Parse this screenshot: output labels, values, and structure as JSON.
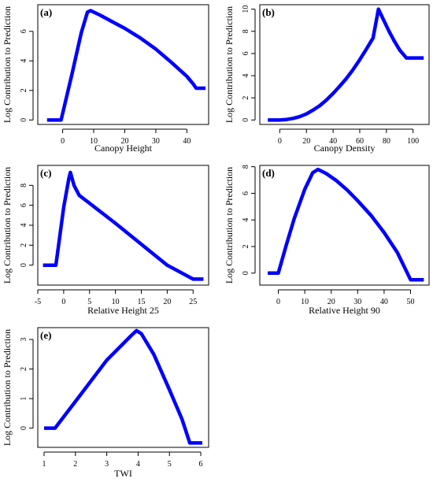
{
  "chart_data": [
    {
      "type": "line",
      "panel_label": "(a)",
      "xlabel": "Canopy Height",
      "ylabel": "Log Contribution to Prediction",
      "xlim": [
        -8,
        47
      ],
      "ylim": [
        -0.3,
        7.8
      ],
      "xticks": [
        0,
        10,
        20,
        30,
        40
      ],
      "yticks": [
        0,
        2,
        4,
        6
      ],
      "series": [
        {
          "color": "#0000ff",
          "x": [
            -5,
            -0.5,
            3,
            6,
            8,
            9,
            12,
            16,
            20,
            25,
            30,
            35,
            40,
            42,
            43,
            46
          ],
          "y": [
            0,
            0,
            3.1,
            5.9,
            7.3,
            7.4,
            7.1,
            6.65,
            6.2,
            5.55,
            4.8,
            3.9,
            2.95,
            2.45,
            2.15,
            2.15
          ]
        }
      ]
    },
    {
      "type": "line",
      "panel_label": "(b)",
      "xlabel": "Canopy Density",
      "ylabel": "Log Contribution to Prediction",
      "xlim": [
        -15,
        112
      ],
      "ylim": [
        -0.4,
        10.4
      ],
      "xticks": [
        0,
        20,
        40,
        60,
        80,
        100
      ],
      "yticks": [
        0,
        2,
        4,
        6,
        8,
        10
      ],
      "series": [
        {
          "color": "#0000ff",
          "x": [
            -9,
            0,
            5,
            10,
            15,
            20,
            25,
            30,
            35,
            40,
            45,
            50,
            55,
            60,
            65,
            70,
            74,
            78,
            82,
            86,
            90,
            95,
            100,
            108
          ],
          "y": [
            0,
            0,
            0.05,
            0.15,
            0.3,
            0.55,
            0.9,
            1.3,
            1.8,
            2.4,
            3.05,
            3.75,
            4.55,
            5.45,
            6.4,
            7.4,
            10,
            9,
            8,
            7.1,
            6.3,
            5.6,
            5.6,
            5.6
          ]
        }
      ]
    },
    {
      "type": "line",
      "panel_label": "(c)",
      "xlabel": "Relative Height 25",
      "ylabel": "Log Contribution to Prediction",
      "xlim": [
        -5,
        28
      ],
      "ylim": [
        -2,
        10
      ],
      "xticks": [
        -5,
        0,
        5,
        10,
        15,
        20,
        25
      ],
      "yticks": [
        0,
        2,
        4,
        6,
        8
      ],
      "series": [
        {
          "color": "#0000ff",
          "x": [
            -4,
            -1.5,
            0,
            1,
            1.3,
            2,
            3,
            5,
            10,
            15,
            20,
            25,
            27
          ],
          "y": [
            0,
            0,
            5.8,
            8.7,
            9.3,
            8,
            7,
            6.2,
            4.2,
            2.1,
            0,
            -1.4,
            -1.4
          ]
        }
      ]
    },
    {
      "type": "line",
      "panel_label": "(d)",
      "xlabel": "Relative Height 90",
      "ylabel": "Log Contribution to Prediction",
      "xlim": [
        -7,
        57
      ],
      "ylim": [
        -0.9,
        8.1
      ],
      "xticks": [
        0,
        10,
        20,
        30,
        40,
        50
      ],
      "yticks": [
        0,
        2,
        4,
        6,
        8
      ],
      "series": [
        {
          "color": "#0000ff",
          "x": [
            -4,
            0,
            3,
            6,
            10,
            13,
            15,
            18,
            22,
            26,
            30,
            35,
            40,
            45,
            50,
            55
          ],
          "y": [
            0,
            0,
            2.1,
            4.1,
            6.3,
            7.55,
            7.8,
            7.5,
            6.95,
            6.25,
            5.45,
            4.35,
            3.05,
            1.55,
            -0.5,
            -0.5
          ]
        }
      ]
    },
    {
      "type": "line",
      "panel_label": "(e)",
      "xlabel": "TWI",
      "ylabel": "Log Contribution to Prediction",
      "xlim": [
        0.8,
        6.25
      ],
      "ylim": [
        -0.65,
        3.4
      ],
      "xticks": [
        1,
        2,
        3,
        4,
        5,
        6
      ],
      "yticks": [
        0,
        1,
        2,
        3
      ],
      "series": [
        {
          "color": "#0000ff",
          "x": [
            1,
            1.35,
            2,
            3,
            3.8,
            3.95,
            4.1,
            4.5,
            5,
            5.4,
            5.65,
            6.05
          ],
          "y": [
            0,
            0,
            0.9,
            2.3,
            3.15,
            3.3,
            3.2,
            2.5,
            1.3,
            0.3,
            -0.5,
            -0.5
          ]
        }
      ]
    }
  ]
}
